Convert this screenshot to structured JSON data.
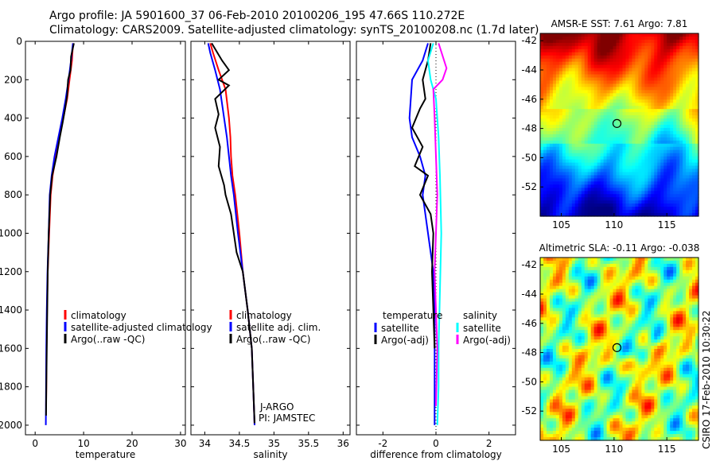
{
  "header": {
    "line1": "Argo profile: JA 5901600_37 06-Feb-2010 20100206_195 47.66S 110.272E",
    "line2": "Climatology: CARS2009. Satellite-adjusted climatology: synTS_20100208.nc (1.7d later)"
  },
  "footer": {
    "credit": "CSIRO 17-Feb-2010 10:30:22"
  },
  "colors": {
    "climatology": "#ff0000",
    "satellite": "#0000ff",
    "argo": "#000000",
    "sat_salinity": "#00ffff",
    "argo_salinity": "#ff00ff"
  },
  "chart_data": [
    {
      "type": "line",
      "xlabel": "temperature",
      "xlim": [
        -2,
        31
      ],
      "ylim": [
        0,
        2050
      ],
      "y_reversed": true,
      "xticks": [
        0,
        10,
        20,
        30
      ],
      "yticks": [
        0,
        200,
        400,
        600,
        800,
        1000,
        1200,
        1400,
        1600,
        1800,
        2000
      ],
      "legend": [
        "climatology",
        "satellite-adjusted climatology",
        "Argo(..raw -QC)"
      ],
      "series": [
        {
          "name": "climatology",
          "color": "#ff0000",
          "x": [
            7.8,
            7.6,
            7.1,
            6.6,
            5.8,
            5.0,
            4.3,
            3.6,
            3.2,
            2.9,
            2.6,
            2.45,
            2.35,
            2.3,
            2.25
          ],
          "y": [
            10,
            100,
            200,
            300,
            400,
            500,
            600,
            700,
            800,
            1000,
            1200,
            1400,
            1600,
            1800,
            1900
          ]
        },
        {
          "name": "satellite-adjusted climatology",
          "color": "#0000ff",
          "x": [
            7.8,
            7.4,
            6.9,
            6.3,
            5.6,
            4.8,
            4.0,
            3.4,
            3.0,
            2.8,
            2.55,
            2.4,
            2.3,
            2.25,
            2.2
          ],
          "y": [
            10,
            100,
            200,
            300,
            400,
            500,
            600,
            700,
            800,
            1000,
            1200,
            1400,
            1600,
            1800,
            2000
          ]
        },
        {
          "name": "Argo(..raw -QC)",
          "color": "#000000",
          "x": [
            8.0,
            7.4,
            7.3,
            6.8,
            6.6,
            6.2,
            5.7,
            5.1,
            4.4,
            3.5,
            3.1,
            2.8,
            2.6,
            2.5,
            2.4,
            2.3,
            2.25
          ],
          "y": [
            10,
            80,
            150,
            200,
            280,
            350,
            420,
            500,
            600,
            700,
            800,
            1000,
            1200,
            1400,
            1600,
            1800,
            1950
          ]
        }
      ]
    },
    {
      "type": "line",
      "xlabel": "salinity",
      "xlim": [
        33.8,
        36.1
      ],
      "ylim": [
        0,
        2050
      ],
      "y_reversed": true,
      "xticks": [
        34,
        34.5,
        35,
        35.5,
        36
      ],
      "xticklabels": [
        "34",
        "34.5",
        "35",
        "35.5",
        "36"
      ],
      "legend": [
        "climatology",
        "satellite adj. clim.",
        "Argo(..raw -QC)"
      ],
      "annotations": [
        "J-ARGO",
        "PI: JAMSTEC"
      ],
      "series": [
        {
          "name": "climatology",
          "color": "#ff0000",
          "x": [
            34.08,
            34.12,
            34.2,
            34.3,
            34.35,
            34.37,
            34.38,
            34.4,
            34.44,
            34.5,
            34.55,
            34.62,
            34.68,
            34.7,
            34.72
          ],
          "y": [
            10,
            60,
            150,
            250,
            400,
            500,
            600,
            700,
            800,
            1000,
            1200,
            1400,
            1600,
            1800,
            2000
          ]
        },
        {
          "name": "satellite adj. clim.",
          "color": "#0000ff",
          "x": [
            34.05,
            34.08,
            34.15,
            34.22,
            34.28,
            34.32,
            34.35,
            34.38,
            34.42,
            34.48,
            34.55,
            34.62,
            34.68,
            34.7,
            34.72
          ],
          "y": [
            10,
            60,
            150,
            250,
            400,
            500,
            600,
            700,
            800,
            1000,
            1200,
            1400,
            1600,
            1800,
            2000
          ]
        },
        {
          "name": "Argo(..raw -QC)",
          "color": "#000000",
          "x": [
            34.1,
            34.25,
            34.35,
            34.2,
            34.35,
            34.15,
            34.2,
            34.15,
            34.22,
            34.2,
            34.28,
            34.3,
            34.38,
            34.42,
            34.46,
            34.55,
            34.62,
            34.68,
            34.7,
            34.72
          ],
          "y": [
            10,
            100,
            150,
            200,
            230,
            300,
            380,
            450,
            550,
            650,
            750,
            800,
            900,
            1000,
            1100,
            1200,
            1400,
            1600,
            1800,
            1990
          ]
        }
      ]
    },
    {
      "type": "line",
      "xlabel": "difference from climatology",
      "xlim": [
        -3,
        3
      ],
      "ylim": [
        0,
        2050
      ],
      "y_reversed": true,
      "xticks": [
        -2,
        0,
        2
      ],
      "legend_titles": [
        "temperature",
        "salinity"
      ],
      "legend": [
        "satellite",
        "Argo(-adj)",
        "satellite",
        "Argo(-adj)"
      ],
      "series": [
        {
          "name": "satellite",
          "group": "temperature",
          "color": "#0000ff",
          "x": [
            -0.3,
            -0.5,
            -0.9,
            -1.0,
            -0.9,
            -0.6,
            -0.4,
            -0.5,
            -0.3,
            -0.1,
            -0.05,
            -0.05,
            -0.05
          ],
          "y": [
            10,
            100,
            200,
            400,
            500,
            600,
            700,
            800,
            1000,
            1200,
            1400,
            1700,
            2000
          ]
        },
        {
          "name": "Argo(-adj)",
          "group": "temperature",
          "color": "#000000",
          "x": [
            -0.2,
            -0.3,
            -0.5,
            -0.4,
            -0.6,
            -0.9,
            -0.5,
            -0.8,
            -0.3,
            -0.6,
            -0.2,
            -0.1,
            -0.15,
            -0.1,
            -0.05
          ],
          "y": [
            10,
            100,
            200,
            300,
            350,
            450,
            550,
            650,
            700,
            800,
            900,
            1000,
            1200,
            1400,
            1600
          ]
        },
        {
          "name": "satellite",
          "group": "salinity",
          "color": "#00ffff",
          "x": [
            -0.1,
            -0.3,
            -0.2,
            0.0,
            0.1,
            0.15,
            0.2,
            0.15,
            0.1,
            0.1,
            0.05
          ],
          "y": [
            10,
            100,
            200,
            300,
            500,
            700,
            1000,
            1300,
            1600,
            1800,
            2000
          ]
        },
        {
          "name": "Argo(-adj)",
          "group": "salinity",
          "color": "#ff00ff",
          "x": [
            0.1,
            0.4,
            0.25,
            -0.1,
            -0.05,
            0.0,
            0.05,
            0.0,
            -0.05,
            0.0,
            0.05,
            0.0
          ],
          "y": [
            10,
            140,
            200,
            250,
            400,
            600,
            800,
            1000,
            1200,
            1400,
            1600,
            1900
          ]
        }
      ]
    },
    {
      "type": "heatmap",
      "title": "AMSR-E SST: 7.61 Argo: 7.81",
      "xlim": [
        103,
        118
      ],
      "ylim": [
        -54,
        -41.5
      ],
      "xticks": [
        105,
        110,
        115
      ],
      "yticks": [
        -52,
        -50,
        -48,
        -46,
        -44,
        -42
      ],
      "colormap": "jet",
      "marker": {
        "lon": 110.272,
        "lat": -47.66
      }
    },
    {
      "type": "heatmap",
      "title": "Altimetric SLA: -0.11 Argo: -0.038",
      "xlim": [
        103,
        118
      ],
      "ylim": [
        -54,
        -41.5
      ],
      "xticks": [
        105,
        110,
        115
      ],
      "yticks": [
        -52,
        -50,
        -48,
        -46,
        -44,
        -42
      ],
      "colormap": "jet",
      "marker": {
        "lon": 110.272,
        "lat": -47.66
      }
    }
  ]
}
